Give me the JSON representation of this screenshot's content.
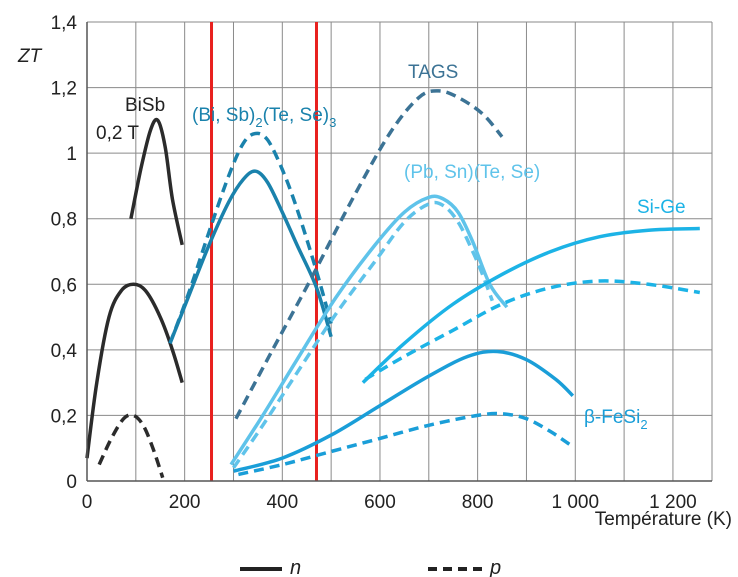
{
  "chart_data": {
    "type": "line",
    "ylabel": "ZT",
    "xlabel": "Température (K)",
    "xlim": [
      0,
      1280
    ],
    "ylim": [
      0,
      1.4
    ],
    "xticks": [
      0,
      200,
      400,
      600,
      800,
      1000,
      1200
    ],
    "xtick_labels": [
      "0",
      "200",
      "400",
      "600",
      "800",
      "1 000",
      "1 200"
    ],
    "yticks": [
      0,
      0.2,
      0.4,
      0.6,
      0.8,
      1,
      1.2,
      1.4
    ],
    "ytick_labels": [
      "0",
      "0,2",
      "0,4",
      "0,6",
      "0,8",
      "1",
      "1,2",
      "1,4"
    ],
    "grid": true,
    "vertical_lines": [
      {
        "x": 255,
        "color": "#e8201e"
      },
      {
        "x": 470,
        "color": "#e8201e"
      }
    ],
    "legend": {
      "placement": "bottom",
      "entries": [
        {
          "text": "n",
          "style": "solid"
        },
        {
          "text": "p",
          "style": "dashed"
        }
      ]
    },
    "series": [
      {
        "type": "n",
        "color": "#2b2b2b",
        "points": [
          [
            90,
            0.8
          ],
          [
            110,
            0.95
          ],
          [
            130,
            1.07
          ],
          [
            145,
            1.1
          ],
          [
            160,
            1.02
          ],
          [
            175,
            0.86
          ],
          [
            195,
            0.72
          ]
        ]
      },
      {
        "type": "n",
        "color": "#2b2b2b",
        "points": [
          [
            0,
            0.07
          ],
          [
            20,
            0.3
          ],
          [
            45,
            0.5
          ],
          [
            70,
            0.58
          ],
          [
            95,
            0.6
          ],
          [
            120,
            0.58
          ],
          [
            150,
            0.5
          ],
          [
            175,
            0.4
          ],
          [
            195,
            0.3
          ]
        ]
      },
      {
        "type": "p",
        "color": "#2b2b2b",
        "points": [
          [
            25,
            0.05
          ],
          [
            50,
            0.13
          ],
          [
            75,
            0.19
          ],
          [
            95,
            0.2
          ],
          [
            115,
            0.17
          ],
          [
            135,
            0.1
          ],
          [
            155,
            0.01
          ]
        ]
      },
      {
        "type": "n",
        "color": "#1a82ac",
        "points": [
          [
            170,
            0.42
          ],
          [
            210,
            0.57
          ],
          [
            250,
            0.72
          ],
          [
            290,
            0.85
          ],
          [
            320,
            0.92
          ],
          [
            345,
            0.945
          ],
          [
            370,
            0.91
          ],
          [
            400,
            0.82
          ],
          [
            430,
            0.72
          ],
          [
            470,
            0.59
          ],
          [
            500,
            0.44
          ]
        ]
      },
      {
        "type": "p",
        "color": "#1a82ac",
        "points": [
          [
            170,
            0.42
          ],
          [
            210,
            0.58
          ],
          [
            250,
            0.76
          ],
          [
            290,
            0.93
          ],
          [
            320,
            1.03
          ],
          [
            345,
            1.06
          ],
          [
            370,
            1.04
          ],
          [
            400,
            0.95
          ],
          [
            430,
            0.83
          ],
          [
            470,
            0.64
          ],
          [
            500,
            0.48
          ]
        ]
      },
      {
        "type": "p",
        "color": "#3c7395",
        "points": [
          [
            305,
            0.19
          ],
          [
            380,
            0.4
          ],
          [
            460,
            0.62
          ],
          [
            540,
            0.85
          ],
          [
            620,
            1.06
          ],
          [
            680,
            1.17
          ],
          [
            720,
            1.19
          ],
          [
            760,
            1.17
          ],
          [
            810,
            1.12
          ],
          [
            850,
            1.05
          ]
        ]
      },
      {
        "type": "n",
        "color": "#5fc3ea",
        "points": [
          [
            295,
            0.05
          ],
          [
            360,
            0.2
          ],
          [
            430,
            0.37
          ],
          [
            510,
            0.56
          ],
          [
            590,
            0.72
          ],
          [
            650,
            0.82
          ],
          [
            700,
            0.865
          ],
          [
            730,
            0.86
          ],
          [
            760,
            0.82
          ],
          [
            790,
            0.73
          ],
          [
            825,
            0.6
          ],
          [
            860,
            0.53
          ]
        ]
      },
      {
        "type": "p",
        "color": "#5fc3ea",
        "points": [
          [
            300,
            0.04
          ],
          [
            360,
            0.17
          ],
          [
            430,
            0.33
          ],
          [
            510,
            0.51
          ],
          [
            590,
            0.67
          ],
          [
            650,
            0.79
          ],
          [
            700,
            0.845
          ],
          [
            730,
            0.84
          ],
          [
            760,
            0.79
          ],
          [
            790,
            0.7
          ],
          [
            810,
            0.63
          ],
          [
            830,
            0.55
          ]
        ]
      },
      {
        "type": "n",
        "color": "#1cb3e6",
        "points": [
          [
            565,
            0.3
          ],
          [
            650,
            0.42
          ],
          [
            750,
            0.54
          ],
          [
            850,
            0.63
          ],
          [
            950,
            0.7
          ],
          [
            1050,
            0.745
          ],
          [
            1150,
            0.765
          ],
          [
            1255,
            0.77
          ]
        ]
      },
      {
        "type": "p",
        "color": "#1cb3e6",
        "points": [
          [
            570,
            0.31
          ],
          [
            650,
            0.38
          ],
          [
            750,
            0.46
          ],
          [
            850,
            0.54
          ],
          [
            950,
            0.59
          ],
          [
            1050,
            0.61
          ],
          [
            1150,
            0.6
          ],
          [
            1255,
            0.575
          ]
        ]
      },
      {
        "type": "n",
        "color": "#1a9ed8",
        "points": [
          [
            300,
            0.03
          ],
          [
            400,
            0.07
          ],
          [
            500,
            0.14
          ],
          [
            600,
            0.23
          ],
          [
            700,
            0.32
          ],
          [
            780,
            0.38
          ],
          [
            840,
            0.395
          ],
          [
            900,
            0.37
          ],
          [
            960,
            0.31
          ],
          [
            995,
            0.26
          ]
        ]
      },
      {
        "type": "p",
        "color": "#1a9ed8",
        "points": [
          [
            310,
            0.02
          ],
          [
            400,
            0.05
          ],
          [
            500,
            0.09
          ],
          [
            600,
            0.13
          ],
          [
            700,
            0.17
          ],
          [
            800,
            0.2
          ],
          [
            850,
            0.205
          ],
          [
            900,
            0.19
          ],
          [
            950,
            0.15
          ],
          [
            990,
            0.11
          ]
        ]
      }
    ],
    "annotations": [
      {
        "text": "BiSb",
        "color": "#222222"
      },
      {
        "text": "0,2 T",
        "color": "#222222"
      },
      {
        "text": "(Bi, Sb)2(Te, Se)3",
        "color": "#1a82ac"
      },
      {
        "text": "TAGS",
        "color": "#3c7395"
      },
      {
        "text": "(Pb, Sn)(Te, Se)",
        "color": "#5fc3ea"
      },
      {
        "text": "Si-Ge",
        "color": "#1cb3e6"
      },
      {
        "text": "β-FeSi2",
        "color": "#1a9ed8"
      }
    ]
  }
}
